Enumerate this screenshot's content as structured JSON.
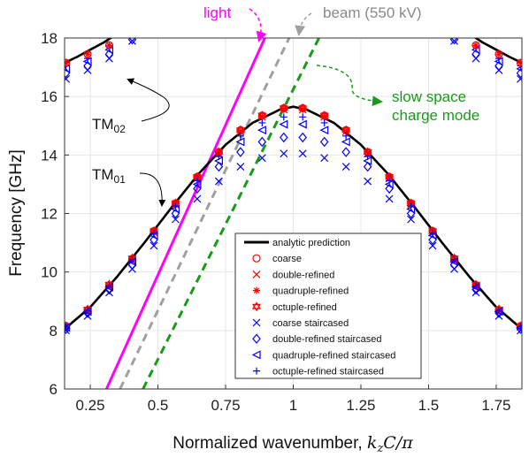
{
  "chart_data": {
    "type": "scatter",
    "xlabel": "Normalized wavenumber, ",
    "xlabel_math": "k",
    "xlabel_sub": "z",
    "xlabel_tail": "C/π",
    "ylabel": "Frequency [GHz]",
    "xlim": [
      0.155,
      1.845
    ],
    "ylim": [
      6,
      18
    ],
    "xticks": [
      0.25,
      0.5,
      0.75,
      1,
      1.25,
      1.5,
      1.75
    ],
    "xtick_labels": [
      "0.25",
      "0.5",
      "0.75",
      "1",
      "1.25",
      "1.5",
      "1.75"
    ],
    "yticks": [
      6,
      8,
      10,
      12,
      14,
      16,
      18
    ],
    "grid": true,
    "legend_position": "lower-right",
    "colors": {
      "analytic": "#000000",
      "refined": "#ff0000",
      "staircased": "#0000ff",
      "light": "#ff00ff",
      "beam": "#a0a0a0",
      "space_charge": "#1a9a1a"
    },
    "series": [
      {
        "name": "analytic prediction",
        "style": "line",
        "mode": "TM01",
        "x": [
          0.155,
          0.25,
          0.35,
          0.45,
          0.55,
          0.65,
          0.75,
          0.85,
          0.95,
          1.0,
          1.05,
          1.15,
          1.25,
          1.35,
          1.45,
          1.55,
          1.65,
          1.75,
          1.845
        ],
        "y": [
          8.05,
          8.8,
          9.85,
          11.0,
          12.2,
          13.35,
          14.35,
          15.1,
          15.55,
          15.65,
          15.55,
          15.1,
          14.35,
          13.35,
          12.2,
          11.0,
          9.85,
          8.8,
          8.05
        ]
      },
      {
        "name": "analytic prediction",
        "style": "line",
        "mode": "TM02-left",
        "x": [
          0.155,
          0.2,
          0.25,
          0.3,
          0.35
        ],
        "y": [
          17.15,
          17.35,
          17.6,
          17.85,
          18.15
        ]
      },
      {
        "name": "analytic prediction",
        "style": "line",
        "mode": "TM02-right",
        "x": [
          1.65,
          1.7,
          1.75,
          1.8,
          1.845
        ],
        "y": [
          18.15,
          17.85,
          17.6,
          17.35,
          17.15
        ]
      },
      {
        "name": "coarse",
        "marker": "circle",
        "color": "#ff0000",
        "x": [
          0.16,
          0.24,
          0.32,
          0.405,
          0.485,
          0.565,
          0.645,
          0.725,
          0.805,
          0.885,
          0.965,
          1.035,
          1.115,
          1.195,
          1.275,
          1.355,
          1.435,
          1.515,
          1.595,
          1.675,
          1.76,
          1.84
        ],
        "y": [
          8.15,
          8.7,
          9.55,
          10.45,
          11.4,
          12.35,
          13.25,
          14.1,
          14.85,
          15.35,
          15.6,
          15.6,
          15.35,
          14.85,
          14.1,
          13.25,
          12.35,
          11.4,
          10.45,
          9.55,
          8.7,
          8.15
        ]
      },
      {
        "name": "double-refined",
        "marker": "x",
        "color": "#ff0000",
        "x": [
          0.16,
          0.24,
          0.32,
          0.405,
          0.485,
          0.565,
          0.645,
          0.725,
          0.805,
          0.885,
          0.965,
          1.035,
          1.115,
          1.195,
          1.275,
          1.355,
          1.435,
          1.515,
          1.595,
          1.675,
          1.76,
          1.84
        ],
        "y": [
          8.12,
          8.68,
          9.5,
          10.4,
          11.35,
          12.3,
          13.2,
          14.05,
          14.8,
          15.3,
          15.55,
          15.55,
          15.3,
          14.8,
          14.05,
          13.2,
          12.3,
          11.35,
          10.4,
          9.5,
          8.68,
          8.12
        ]
      },
      {
        "name": "quadruple-refined",
        "marker": "asterisk",
        "color": "#ff0000",
        "x": [
          0.16,
          0.24,
          0.32,
          0.405,
          0.485,
          0.565,
          0.645,
          0.725,
          0.805,
          0.885,
          0.965,
          1.035,
          1.115,
          1.195,
          1.275,
          1.355,
          1.435,
          1.515,
          1.595,
          1.675,
          1.76,
          1.84
        ],
        "y": [
          8.12,
          8.7,
          9.55,
          10.45,
          11.38,
          12.33,
          13.22,
          14.08,
          14.82,
          15.32,
          15.57,
          15.57,
          15.32,
          14.82,
          14.08,
          13.22,
          12.33,
          11.38,
          10.45,
          9.55,
          8.7,
          8.12
        ]
      },
      {
        "name": "octuple-refined",
        "marker": "hexagram",
        "color": "#ff0000",
        "x": [
          0.16,
          0.24,
          0.32,
          0.405,
          0.485,
          0.565,
          0.645,
          0.725,
          0.805,
          0.885,
          0.965,
          1.035,
          1.115,
          1.195,
          1.275,
          1.355,
          1.435,
          1.515,
          1.595,
          1.675,
          1.76,
          1.84
        ],
        "y": [
          8.15,
          8.72,
          9.57,
          10.47,
          11.4,
          12.35,
          13.25,
          14.1,
          14.85,
          15.35,
          15.6,
          15.6,
          15.35,
          14.85,
          14.1,
          13.25,
          12.35,
          11.4,
          10.47,
          9.57,
          8.72,
          8.15
        ]
      },
      {
        "name": "coarse staircased",
        "marker": "x",
        "color": "#0000ff",
        "x": [
          0.16,
          0.24,
          0.32,
          0.405,
          0.485,
          0.565,
          0.645,
          0.725,
          0.805,
          0.885,
          0.965,
          1.035,
          1.115,
          1.195,
          1.275,
          1.355,
          1.435,
          1.515,
          1.595,
          1.675,
          1.76,
          1.84
        ],
        "y": [
          8.0,
          8.5,
          9.3,
          10.1,
          10.9,
          11.8,
          12.5,
          13.1,
          13.6,
          13.9,
          14.05,
          14.05,
          13.9,
          13.6,
          13.1,
          12.5,
          11.8,
          10.9,
          10.1,
          9.3,
          8.5,
          8.0
        ]
      },
      {
        "name": "double-refined staircased",
        "marker": "diamond",
        "color": "#0000ff",
        "x": [
          0.16,
          0.24,
          0.32,
          0.405,
          0.485,
          0.565,
          0.645,
          0.725,
          0.805,
          0.885,
          0.965,
          1.035,
          1.115,
          1.195,
          1.275,
          1.355,
          1.435,
          1.515,
          1.595,
          1.675,
          1.76,
          1.84
        ],
        "y": [
          8.05,
          8.6,
          9.4,
          10.25,
          11.1,
          12.0,
          12.85,
          13.6,
          14.1,
          14.45,
          14.6,
          14.6,
          14.45,
          14.1,
          13.6,
          12.85,
          12.0,
          11.1,
          10.25,
          9.4,
          8.6,
          8.05
        ]
      },
      {
        "name": "quadruple-refined staircased",
        "marker": "triangle-left",
        "color": "#0000ff",
        "x": [
          0.16,
          0.24,
          0.32,
          0.405,
          0.485,
          0.565,
          0.645,
          0.725,
          0.805,
          0.885,
          0.965,
          1.035,
          1.115,
          1.195,
          1.275,
          1.355,
          1.435,
          1.515,
          1.595,
          1.675,
          1.76,
          1.84
        ],
        "y": [
          8.1,
          8.65,
          9.48,
          10.35,
          11.25,
          12.15,
          13.0,
          13.8,
          14.45,
          14.85,
          15.05,
          15.05,
          14.85,
          14.45,
          13.8,
          13.0,
          12.15,
          11.25,
          10.35,
          9.48,
          8.65,
          8.1
        ]
      },
      {
        "name": "octuple-refined staircased",
        "marker": "plus",
        "color": "#0000ff",
        "x": [
          0.16,
          0.24,
          0.32,
          0.405,
          0.485,
          0.565,
          0.645,
          0.725,
          0.805,
          0.885,
          0.965,
          1.035,
          1.115,
          1.195,
          1.275,
          1.355,
          1.435,
          1.515,
          1.595,
          1.675,
          1.76,
          1.84
        ],
        "y": [
          8.12,
          8.68,
          9.52,
          10.42,
          11.32,
          12.25,
          13.12,
          13.95,
          14.65,
          15.1,
          15.3,
          15.3,
          15.1,
          14.65,
          13.95,
          13.12,
          12.25,
          11.32,
          10.42,
          9.52,
          8.68,
          8.12
        ]
      },
      {
        "name": "TM02 coarse staircased",
        "marker": "x",
        "color": "#0000ff",
        "x": [
          0.16,
          0.24,
          0.32,
          0.405,
          1.595,
          1.675,
          1.76,
          1.84
        ],
        "y": [
          16.6,
          16.9,
          17.3,
          17.9,
          17.9,
          17.3,
          16.9,
          16.6
        ]
      },
      {
        "name": "TM02 double-refined staircased",
        "marker": "diamond",
        "color": "#0000ff",
        "x": [
          0.16,
          0.24,
          0.32,
          0.405,
          1.595,
          1.675,
          1.76,
          1.84
        ],
        "y": [
          16.8,
          17.05,
          17.45,
          17.95,
          17.95,
          17.45,
          17.05,
          16.8
        ]
      },
      {
        "name": "TM02 quadruple-refined staircased",
        "marker": "triangle-left",
        "color": "#0000ff",
        "x": [
          0.16,
          0.24,
          0.32,
          1.675,
          1.76,
          1.84
        ],
        "y": [
          16.95,
          17.2,
          17.6,
          17.6,
          17.2,
          16.95
        ]
      },
      {
        "name": "TM02 octuple-refined staircased",
        "marker": "plus",
        "color": "#0000ff",
        "x": [
          0.16,
          0.24,
          0.32,
          1.675,
          1.76,
          1.84
        ],
        "y": [
          17.05,
          17.3,
          17.7,
          17.7,
          17.3,
          17.05
        ]
      },
      {
        "name": "TM02 refined",
        "marker": "asterisk",
        "color": "#ff0000",
        "x": [
          0.16,
          0.24,
          0.32,
          1.675,
          1.76,
          1.84
        ],
        "y": [
          17.15,
          17.45,
          17.75,
          17.75,
          17.45,
          17.15
        ]
      },
      {
        "name": "TM02 coarse",
        "marker": "circle",
        "color": "#ff0000",
        "x": [
          0.16,
          0.24,
          0.32,
          1.675,
          1.76,
          1.84
        ],
        "y": [
          17.15,
          17.45,
          17.75,
          17.75,
          17.45,
          17.15
        ]
      },
      {
        "name": "light",
        "style": "line",
        "color": "#ff00ff",
        "dash": "solid",
        "x": [
          0.31,
          0.895
        ],
        "y": [
          6.0,
          18.0
        ]
      },
      {
        "name": "beam (550 kV)",
        "style": "line",
        "color": "#a0a0a0",
        "dash": "dashed",
        "x": [
          0.36,
          0.985
        ],
        "y": [
          6.0,
          18.0
        ]
      },
      {
        "name": "slow space charge mode",
        "style": "line",
        "color": "#1a9a1a",
        "dash": "dashed",
        "x": [
          0.445,
          1.095
        ],
        "y": [
          6.0,
          18.0
        ]
      }
    ],
    "legend": [
      {
        "label": "analytic prediction",
        "marker": "line",
        "color": "#000000"
      },
      {
        "label": "coarse",
        "marker": "circle",
        "color": "#ff0000"
      },
      {
        "label": "double-refined",
        "marker": "x",
        "color": "#ff0000"
      },
      {
        "label": "quadruple-refined",
        "marker": "asterisk",
        "color": "#ff0000"
      },
      {
        "label": "octuple-refined",
        "marker": "hexagram",
        "color": "#ff0000"
      },
      {
        "label": "coarse staircased",
        "marker": "x",
        "color": "#0000ff"
      },
      {
        "label": "double-refined staircased",
        "marker": "diamond",
        "color": "#0000ff"
      },
      {
        "label": "quadruple-refined staircased",
        "marker": "triangle-left",
        "color": "#0000ff"
      },
      {
        "label": "octuple-refined staircased",
        "marker": "plus",
        "color": "#0000ff"
      }
    ],
    "annotations": {
      "light": "light",
      "beam": "beam (550 kV)",
      "space_charge_line1": "slow space",
      "space_charge_line2": "charge mode",
      "tm02": "TM",
      "tm02_sub": "02",
      "tm01": "TM",
      "tm01_sub": "01"
    }
  }
}
